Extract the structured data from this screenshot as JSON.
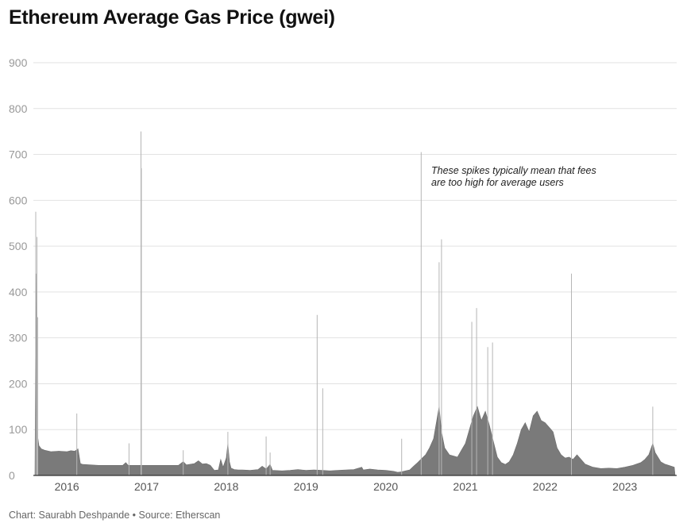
{
  "title": "Ethereum Average Gas Price (gwei)",
  "footer": {
    "credit": "Chart: Saurabh Deshpande",
    "separator": "•",
    "source": "Source: Etherscan"
  },
  "chart_data": {
    "type": "area",
    "title": "Ethereum Average Gas Price (gwei)",
    "xlabel": "",
    "ylabel": "",
    "ylim": [
      0,
      900
    ],
    "xlim": [
      2015.58,
      2023.65
    ],
    "grid": true,
    "y_ticks": [
      "0",
      "100",
      "200",
      "300",
      "400",
      "500",
      "600",
      "700",
      "800",
      "900"
    ],
    "x_ticks": [
      {
        "label": "2016",
        "value": 2016.0
      },
      {
        "label": "2017",
        "value": 2017.0
      },
      {
        "label": "2018",
        "value": 2018.0
      },
      {
        "label": "2019",
        "value": 2019.0
      },
      {
        "label": "2020",
        "value": 2020.0
      },
      {
        "label": "2021",
        "value": 2021.0
      },
      {
        "label": "2022",
        "value": 2022.0
      },
      {
        "label": "2023",
        "value": 2023.0
      }
    ],
    "colors": {
      "area": "#7a7a7a",
      "spike": "#b5b5b5",
      "grid": "#e2e2e2",
      "axis": "#333333"
    },
    "annotation": {
      "lines": [
        "These spikes typically mean that fees",
        "are too high for average users"
      ],
      "x": 2020.5,
      "y": 670
    },
    "series": [
      {
        "points": [
          [
            2015.6,
            0
          ],
          [
            2015.61,
            330
          ],
          [
            2015.615,
            440
          ],
          [
            2015.62,
            140
          ],
          [
            2015.63,
            90
          ],
          [
            2015.65,
            65
          ],
          [
            2015.68,
            58
          ],
          [
            2015.72,
            55
          ],
          [
            2015.8,
            52
          ],
          [
            2015.9,
            53
          ],
          [
            2016.0,
            52
          ],
          [
            2016.05,
            54
          ],
          [
            2016.1,
            53
          ],
          [
            2016.14,
            58
          ],
          [
            2016.15,
            48
          ],
          [
            2016.17,
            26
          ],
          [
            2016.2,
            24
          ],
          [
            2016.3,
            23
          ],
          [
            2016.4,
            22
          ],
          [
            2016.5,
            22
          ],
          [
            2016.6,
            22
          ],
          [
            2016.7,
            22
          ],
          [
            2016.74,
            28
          ],
          [
            2016.77,
            22
          ],
          [
            2016.8,
            22
          ],
          [
            2016.9,
            22
          ],
          [
            2017.0,
            22
          ],
          [
            2017.1,
            22
          ],
          [
            2017.2,
            22
          ],
          [
            2017.3,
            22
          ],
          [
            2017.4,
            22
          ],
          [
            2017.46,
            30
          ],
          [
            2017.5,
            23
          ],
          [
            2017.6,
            26
          ],
          [
            2017.65,
            32
          ],
          [
            2017.7,
            25
          ],
          [
            2017.75,
            26
          ],
          [
            2017.8,
            22
          ],
          [
            2017.85,
            11
          ],
          [
            2017.9,
            12
          ],
          [
            2017.93,
            35
          ],
          [
            2017.96,
            18
          ],
          [
            2018.0,
            38
          ],
          [
            2018.02,
            70
          ],
          [
            2018.04,
            30
          ],
          [
            2018.06,
            16
          ],
          [
            2018.1,
            13
          ],
          [
            2018.15,
            12
          ],
          [
            2018.2,
            12
          ],
          [
            2018.3,
            11
          ],
          [
            2018.4,
            13
          ],
          [
            2018.45,
            20
          ],
          [
            2018.5,
            14
          ],
          [
            2018.55,
            24
          ],
          [
            2018.58,
            11
          ],
          [
            2018.7,
            10
          ],
          [
            2018.8,
            11
          ],
          [
            2018.9,
            13
          ],
          [
            2019.0,
            11
          ],
          [
            2019.1,
            12
          ],
          [
            2019.2,
            11
          ],
          [
            2019.3,
            10
          ],
          [
            2019.4,
            11
          ],
          [
            2019.5,
            12
          ],
          [
            2019.6,
            13
          ],
          [
            2019.7,
            18
          ],
          [
            2019.72,
            12
          ],
          [
            2019.8,
            14
          ],
          [
            2019.9,
            12
          ],
          [
            2020.0,
            11
          ],
          [
            2020.1,
            9
          ],
          [
            2020.15,
            7
          ],
          [
            2020.2,
            8
          ],
          [
            2020.25,
            10
          ],
          [
            2020.3,
            12
          ],
          [
            2020.35,
            20
          ],
          [
            2020.4,
            28
          ],
          [
            2020.44,
            35
          ],
          [
            2020.5,
            45
          ],
          [
            2020.55,
            60
          ],
          [
            2020.6,
            80
          ],
          [
            2020.63,
            110
          ],
          [
            2020.67,
            150
          ],
          [
            2020.7,
            95
          ],
          [
            2020.74,
            60
          ],
          [
            2020.8,
            45
          ],
          [
            2020.9,
            40
          ],
          [
            2020.95,
            55
          ],
          [
            2021.0,
            70
          ],
          [
            2021.05,
            100
          ],
          [
            2021.1,
            130
          ],
          [
            2021.15,
            150
          ],
          [
            2021.2,
            120
          ],
          [
            2021.25,
            140
          ],
          [
            2021.3,
            110
          ],
          [
            2021.35,
            75
          ],
          [
            2021.4,
            40
          ],
          [
            2021.45,
            28
          ],
          [
            2021.5,
            24
          ],
          [
            2021.55,
            30
          ],
          [
            2021.6,
            45
          ],
          [
            2021.65,
            70
          ],
          [
            2021.7,
            100
          ],
          [
            2021.75,
            115
          ],
          [
            2021.8,
            95
          ],
          [
            2021.85,
            130
          ],
          [
            2021.9,
            140
          ],
          [
            2021.95,
            120
          ],
          [
            2022.0,
            115
          ],
          [
            2022.05,
            105
          ],
          [
            2022.1,
            95
          ],
          [
            2022.15,
            60
          ],
          [
            2022.2,
            45
          ],
          [
            2022.25,
            38
          ],
          [
            2022.3,
            40
          ],
          [
            2022.35,
            35
          ],
          [
            2022.4,
            45
          ],
          [
            2022.45,
            35
          ],
          [
            2022.5,
            25
          ],
          [
            2022.6,
            18
          ],
          [
            2022.7,
            15
          ],
          [
            2022.8,
            16
          ],
          [
            2022.9,
            15
          ],
          [
            2023.0,
            18
          ],
          [
            2023.1,
            22
          ],
          [
            2023.2,
            28
          ],
          [
            2023.25,
            35
          ],
          [
            2023.3,
            45
          ],
          [
            2023.35,
            70
          ],
          [
            2023.38,
            50
          ],
          [
            2023.45,
            30
          ],
          [
            2023.5,
            25
          ],
          [
            2023.55,
            22
          ],
          [
            2023.62,
            18
          ],
          [
            2023.63,
            0
          ]
        ]
      }
    ],
    "spikes": [
      [
        2015.61,
        575
      ],
      [
        2015.625,
        520
      ],
      [
        2015.635,
        345
      ],
      [
        2016.125,
        135
      ],
      [
        2016.78,
        70
      ],
      [
        2016.93,
        750
      ],
      [
        2016.935,
        670
      ],
      [
        2017.46,
        55
      ],
      [
        2018.02,
        95
      ],
      [
        2018.5,
        85
      ],
      [
        2018.55,
        50
      ],
      [
        2019.14,
        350
      ],
      [
        2019.21,
        190
      ],
      [
        2020.2,
        80
      ],
      [
        2020.445,
        705
      ],
      [
        2020.67,
        465
      ],
      [
        2020.7,
        515
      ],
      [
        2021.08,
        335
      ],
      [
        2021.14,
        365
      ],
      [
        2021.28,
        280
      ],
      [
        2021.34,
        290
      ],
      [
        2022.33,
        440
      ],
      [
        2023.35,
        150
      ]
    ]
  }
}
